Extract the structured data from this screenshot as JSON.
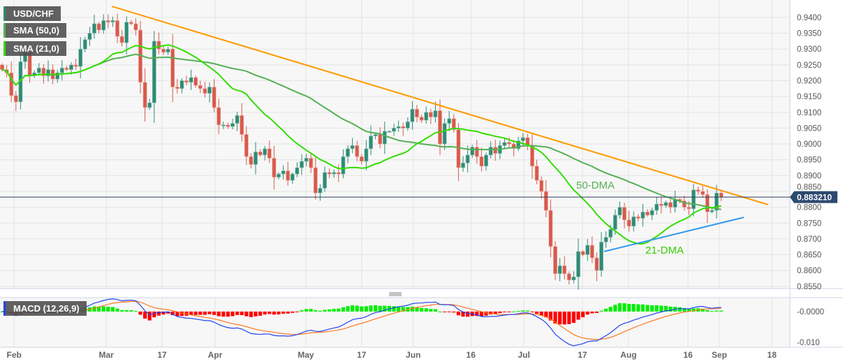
{
  "legend": {
    "symbol": "USD/CHF",
    "sma50": "SMA (50,0)",
    "sma21": "SMA (21,0)",
    "macd": "MACD (12,26,9)"
  },
  "annotations": {
    "dma50": "50-DMA",
    "dma21": "21-DMA"
  },
  "colors": {
    "bull": "#2e8b75",
    "bear": "#d85a4b",
    "sma21": "#33dd00",
    "sma50": "#55b055",
    "resistance": "#ff9900",
    "support": "#3399ee",
    "macd": "#2244ee",
    "signal": "#ff7722",
    "hist_pos": "#00ee00",
    "hist_neg": "#ff0000",
    "price_tag": "#2c4a6e"
  },
  "chart_data": {
    "type": "candlestick",
    "title": "USD/CHF",
    "current_price": "0.883210",
    "current_value": 0.88321,
    "ylim": [
      0.8543,
      0.9455
    ],
    "y_ticks": [
      "0.9400",
      "0.9350",
      "0.9300",
      "0.9250",
      "0.9200",
      "0.9150",
      "0.9100",
      "0.9050",
      "0.9000",
      "0.8950",
      "0.8900",
      "0.8850",
      "0.8800",
      "0.8750",
      "0.8700",
      "0.8650",
      "0.8600",
      "0.8550"
    ],
    "x_ticks": [
      {
        "label": "Feb",
        "index": 2.6
      },
      {
        "label": "Mar",
        "index": 22.6
      },
      {
        "label": "17",
        "index": 34.7
      },
      {
        "label": "Apr",
        "index": 46.2
      },
      {
        "label": "May",
        "index": 65.9
      },
      {
        "label": "17",
        "index": 78
      },
      {
        "label": "Jun",
        "index": 89.2
      },
      {
        "label": "16",
        "index": 101.7
      },
      {
        "label": "Jul",
        "index": 113.2
      },
      {
        "label": "17",
        "index": 125.9
      },
      {
        "label": "Aug",
        "index": 135.9
      },
      {
        "label": "16",
        "index": 148.8
      },
      {
        "label": "Sep",
        "index": 155.6
      },
      {
        "label": "18",
        "index": 167
      }
    ],
    "closes": [
      0.9235,
      0.9225,
      0.9153,
      0.9133,
      0.926,
      0.929,
      0.9217,
      0.9225,
      0.924,
      0.9215,
      0.9235,
      0.9205,
      0.9225,
      0.924,
      0.9235,
      0.925,
      0.9245,
      0.93,
      0.933,
      0.935,
      0.938,
      0.936,
      0.939,
      0.9385,
      0.939,
      0.934,
      0.932,
      0.9385,
      0.938,
      0.936,
      0.9195,
      0.9115,
      0.913,
      0.9325,
      0.93,
      0.929,
      0.93,
      0.918,
      0.9175,
      0.92,
      0.9195,
      0.921,
      0.9185,
      0.9175,
      0.916,
      0.918,
      0.9115,
      0.906,
      0.906,
      0.9055,
      0.9065,
      0.909,
      0.903,
      0.896,
      0.8935,
      0.8975,
      0.8965,
      0.8985,
      0.8955,
      0.8895,
      0.8905,
      0.8915,
      0.8885,
      0.8905,
      0.8925,
      0.8945,
      0.8955,
      0.8925,
      0.8845,
      0.886,
      0.891,
      0.8905,
      0.891,
      0.8905,
      0.896,
      0.8985,
      0.8995,
      0.896,
      0.8945,
      0.8985,
      0.9025,
      0.903,
      0.9,
      0.904,
      0.904,
      0.905,
      0.9055,
      0.905,
      0.907,
      0.911,
      0.9085,
      0.9075,
      0.91,
      0.9085,
      0.9105,
      0.9,
      0.9065,
      0.908,
      0.9045,
      0.8925,
      0.894,
      0.8965,
      0.899,
      0.896,
      0.893,
      0.8965,
      0.899,
      0.897,
      0.8995,
      0.9005,
      0.9,
      0.8985,
      0.901,
      0.902,
      0.8995,
      0.893,
      0.8885,
      0.885,
      0.879,
      0.8676,
      0.859,
      0.8615,
      0.859,
      0.857,
      0.858,
      0.866,
      0.865,
      0.868,
      0.864,
      0.86,
      0.869,
      0.8705,
      0.873,
      0.8775,
      0.88,
      0.876,
      0.874,
      0.877,
      0.8765,
      0.8785,
      0.8775,
      0.879,
      0.881,
      0.8805,
      0.8815,
      0.88,
      0.8825,
      0.882,
      0.88,
      0.8795,
      0.8855,
      0.885,
      0.884,
      0.8785,
      0.879,
      0.8845,
      0.8832
    ],
    "first_open": 0.925,
    "indicators": [
      "SMA 50",
      "SMA 21",
      "MACD 12,26,9"
    ],
    "trendlines": [
      {
        "role": "resistance",
        "from": {
          "index": 23.8,
          "price": 0.9435
        },
        "to": {
          "index": 166.2,
          "price": 0.8808
        }
      },
      {
        "role": "support",
        "from": {
          "index": 130.6,
          "price": 0.866
        },
        "to": {
          "index": 160.9,
          "price": 0.8768
        }
      }
    ],
    "macd_panel": {
      "ylim": [
        -0.0116,
        0.0043
      ],
      "y_ticks": [
        {
          "label": "-0.0000",
          "value": 0
        },
        {
          "label": "-0.010",
          "value": -0.01
        }
      ]
    },
    "grid": true
  }
}
